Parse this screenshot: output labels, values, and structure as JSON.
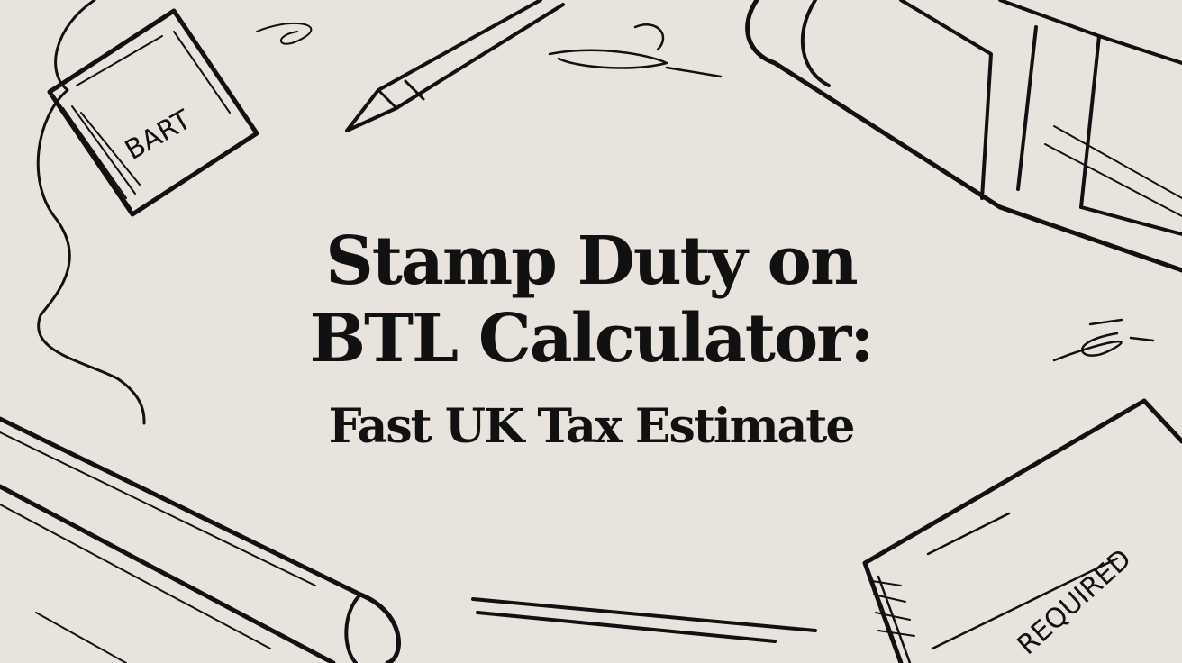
{
  "title": {
    "line1": "Stamp Duty on",
    "line2": "BTL Calculator:",
    "line3": "Fast UK Tax Estimate"
  },
  "illustration": {
    "stamp_left_label": "BART",
    "stamp_right_label": "REQUIRED",
    "ink_color": "#111111",
    "background_color": "#e9e3dd"
  }
}
